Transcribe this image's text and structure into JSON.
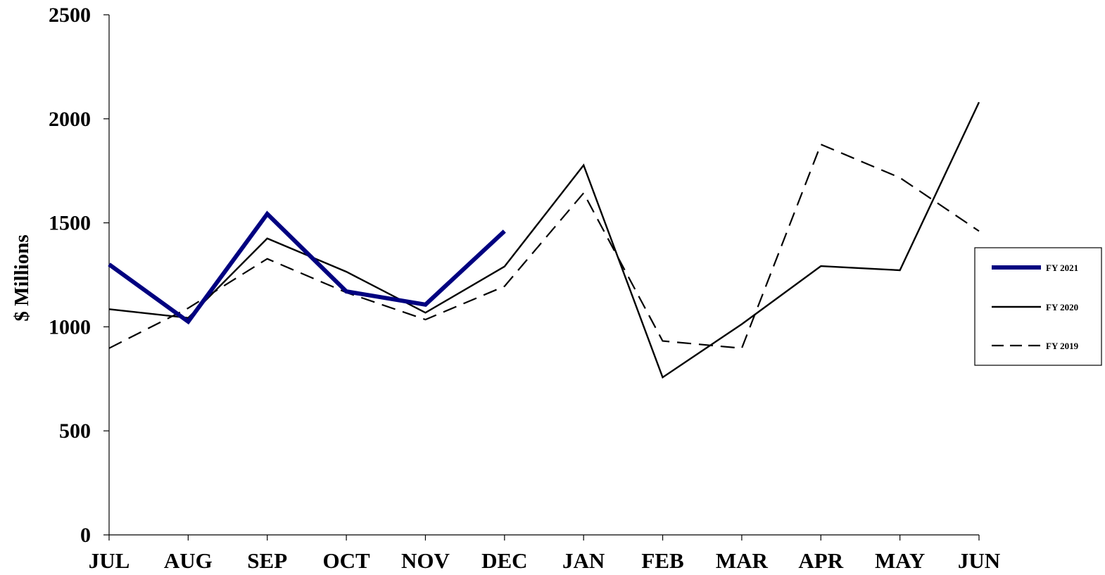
{
  "chart_data": {
    "type": "line",
    "title": "",
    "xlabel": "",
    "ylabel": "$ Millions",
    "categories": [
      "JUL",
      "AUG",
      "SEP",
      "OCT",
      "NOV",
      "DEC",
      "JAN",
      "FEB",
      "MAR",
      "APR",
      "MAY",
      "JUN"
    ],
    "ylim": [
      0,
      2500
    ],
    "yticks": [
      "0",
      "500",
      "1000",
      "1500",
      "2000",
      "2500"
    ],
    "grid": false,
    "legend_position": "right",
    "series": [
      {
        "name": "FY 2021",
        "style": "thick-solid",
        "color": "#000080",
        "values": [
          1300,
          1025,
          1543,
          1170,
          1107,
          1460,
          null,
          null,
          null,
          null,
          null,
          null
        ]
      },
      {
        "name": "FY 2020",
        "style": "thin-solid",
        "color": "#000000",
        "values": [
          1085,
          1043,
          1425,
          1265,
          1068,
          1290,
          1777,
          757,
          1013,
          1292,
          1272,
          2080
        ]
      },
      {
        "name": "FY 2019",
        "style": "dashed",
        "color": "#000000",
        "values": [
          897,
          1090,
          1327,
          1165,
          1035,
          1195,
          1643,
          932,
          897,
          1877,
          1717,
          1460
        ]
      }
    ]
  }
}
